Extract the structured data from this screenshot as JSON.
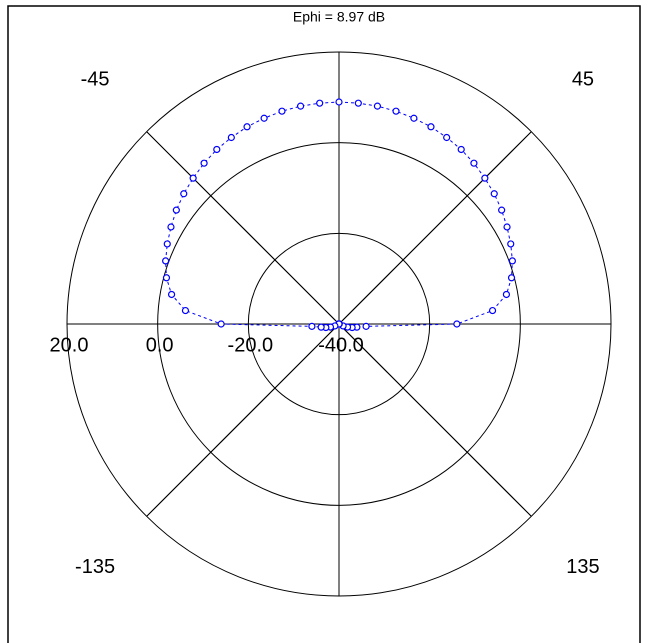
{
  "chart_data": {
    "type": "polar",
    "title": "Ephi = 8.97 dB",
    "theta": [
      0,
      5,
      10,
      15,
      20,
      25,
      30,
      35,
      40,
      45,
      50,
      55,
      60,
      65,
      70,
      75,
      80,
      85,
      90,
      95,
      100,
      105,
      110,
      115,
      120,
      125,
      130,
      135,
      140,
      145,
      150,
      155,
      160,
      165,
      170,
      175,
      180,
      185,
      190,
      195,
      200,
      205,
      210,
      215,
      220,
      225,
      230,
      235,
      240,
      245,
      250,
      255,
      260,
      265,
      270,
      275,
      280,
      285,
      290,
      295,
      300,
      305,
      310,
      315,
      320,
      325,
      330,
      335,
      340,
      345,
      350,
      355
    ],
    "values": [
      8.97,
      8.9,
      8.8,
      8.6,
      8.3,
      8.0,
      7.5,
      7.0,
      6.3,
      5.5,
      4.7,
      3.8,
      2.8,
      1.8,
      0.7,
      -0.6,
      -2.5,
      -6,
      -14,
      -34,
      -36,
      -37,
      -38,
      -39,
      -40,
      -40,
      -40,
      -40,
      -40,
      -40,
      -40,
      -40,
      -40,
      -40,
      -40,
      -40,
      -40,
      -40,
      -40,
      -40,
      -40,
      -40,
      -40,
      -40,
      -40,
      -40,
      -40,
      -40,
      -40,
      -39,
      -38,
      -37,
      -36,
      -34,
      -14,
      -6,
      -2.5,
      -0.6,
      0.7,
      1.8,
      2.8,
      3.8,
      4.7,
      5.5,
      6.3,
      7.0,
      7.5,
      8.0,
      8.3,
      8.6,
      8.8,
      8.9
    ],
    "color": "#0000ff",
    "rlim": [
      -40,
      20
    ],
    "rticks": [
      {
        "value": 20,
        "label": "20.0"
      },
      {
        "value": 0,
        "label": "0.0"
      },
      {
        "value": -20,
        "label": "-20.0"
      },
      {
        "value": -40,
        "label": "-40.0"
      }
    ],
    "thetaticks": [
      -45,
      45,
      -135,
      135
    ]
  }
}
